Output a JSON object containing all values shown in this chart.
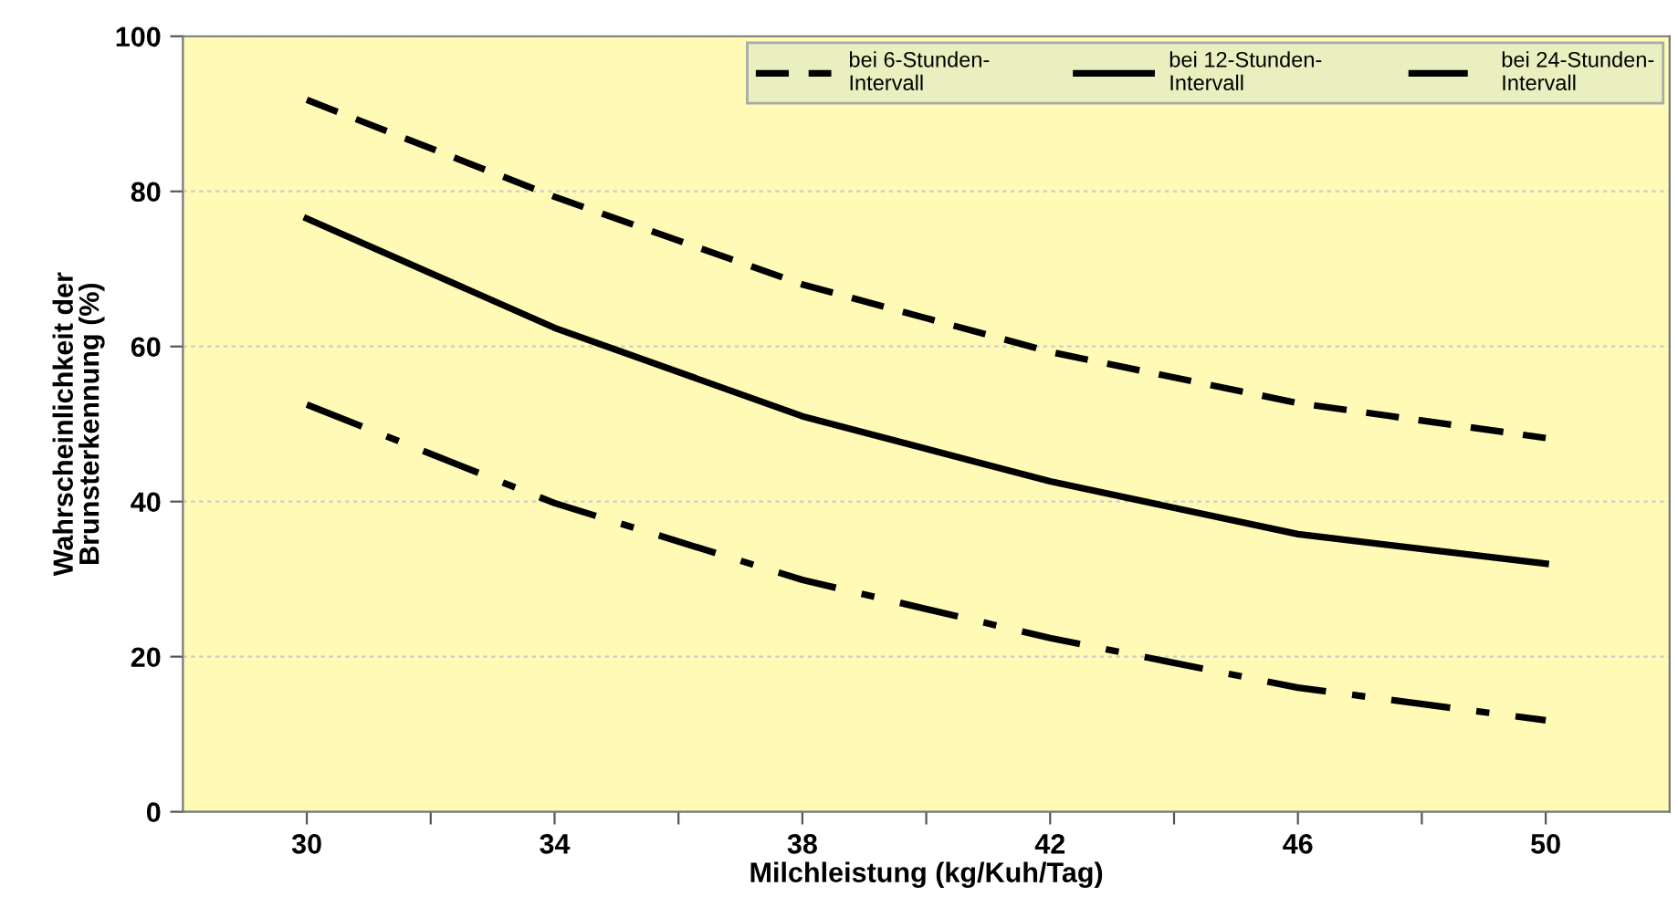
{
  "chart_data": {
    "type": "line",
    "xlabel": "Milchleistung (kg/Kuh/Tag)",
    "ylabel": "Wahrscheinlichkeit der\nBrunsterkennung (%)",
    "x": [
      30,
      34,
      38,
      42,
      46,
      50
    ],
    "series": [
      {
        "name": "bei 6-Stunden-\nIntervall",
        "color": "#000000",
        "line_style": "dashed",
        "values": [
          91.8,
          79.3,
          68,
          59.3,
          52.7,
          48.2
        ]
      },
      {
        "name": "bei 12-Stunden-\nIntervall",
        "color": "#000000",
        "line_style": "solid",
        "values": [
          76.5,
          62.4,
          51,
          42.6,
          35.8,
          32
        ]
      },
      {
        "name": "bei 24-Stunden-\nIntervall",
        "color": "#000000",
        "line_style": "dashdot",
        "values": [
          52.5,
          39.8,
          29.9,
          22.4,
          16,
          11.8
        ]
      }
    ],
    "xlim": [
      28,
      52
    ],
    "xticks": [
      30,
      {
        "value": 32,
        "label": null
      },
      34,
      {
        "value": 36,
        "label": null
      },
      38,
      {
        "value": 40,
        "label": null
      },
      42,
      {
        "value": 44,
        "label": null
      },
      46,
      {
        "value": 48,
        "label": null
      },
      50
    ],
    "ylim": [
      0,
      100
    ],
    "yticks": [
      0,
      20,
      40,
      60,
      80,
      100
    ],
    "grid": "y",
    "legend": "top right",
    "marker": "none"
  }
}
